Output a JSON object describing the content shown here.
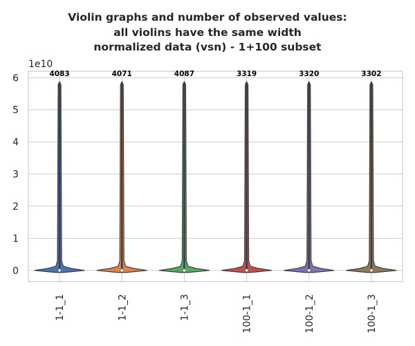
{
  "chart_data": {
    "type": "violin",
    "title_lines": [
      "Violin graphs and number of observed values:",
      "all violins have the same width",
      "normalized data (vsn) - 1+100 subset"
    ],
    "xlabel": "",
    "ylabel": "",
    "y_offset_label": "1e10",
    "y_unit": 10000000000,
    "ylim": [
      -0.35,
      6.2
    ],
    "yticks": [
      0,
      1,
      2,
      3,
      4,
      5,
      6
    ],
    "grid": true,
    "categories": [
      "1-1_1",
      "1-1_2",
      "1-1_3",
      "100-1_1",
      "100-1_2",
      "100-1_3"
    ],
    "counts": [
      "4083",
      "4071",
      "4087",
      "3319",
      "3320",
      "3302"
    ],
    "max_values": [
      5.87,
      5.87,
      5.87,
      5.87,
      5.87,
      5.87
    ],
    "min_values": [
      0,
      0,
      0,
      0,
      0,
      0
    ],
    "medians": [
      0,
      0,
      0,
      0,
      0,
      0
    ],
    "colors": [
      "#4c72b0",
      "#dd8452",
      "#55a868",
      "#c44e52",
      "#8172b3",
      "#937860"
    ]
  }
}
